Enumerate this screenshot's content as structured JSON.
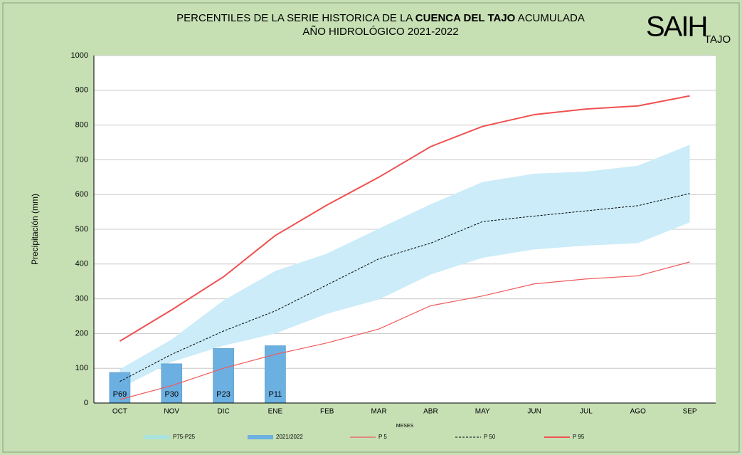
{
  "chart_data": {
    "type": "line",
    "title_parts": [
      "PERCENTILES DE LA SERIE HISTORICA DE LA ",
      "CUENCA DEL TAJO",
      " ACUMULADA"
    ],
    "subtitle": "AÑO HIDROLÓGICO 2021-2022",
    "logo": "SAIH",
    "logo_sub": "TAJO",
    "x_label": "MESES",
    "y_label": "Precipitación (mm)",
    "categories": [
      "OCT",
      "NOV",
      "DIC",
      "ENE",
      "FEB",
      "MAR",
      "ABR",
      "MAY",
      "JUN",
      "JUL",
      "AGO",
      "SEP"
    ],
    "ylim": [
      0,
      1000
    ],
    "yticks": [
      0,
      100,
      200,
      300,
      400,
      500,
      600,
      700,
      800,
      900,
      1000
    ],
    "grid": true,
    "legend": "bottom",
    "series": [
      {
        "name": "P75-P25",
        "type": "band",
        "color": "#cbecf8",
        "legend_color": "#a9e3dc",
        "upper": [
          97,
          183,
          295,
          380,
          430,
          502,
          572,
          636,
          660,
          666,
          683,
          743
        ],
        "lower": [
          42,
          118,
          165,
          200,
          257,
          298,
          370,
          418,
          442,
          453,
          460,
          520
        ]
      },
      {
        "name": "2021/2022",
        "type": "bar",
        "color": "#6cb0e2",
        "values": [
          88,
          113,
          157,
          165,
          null,
          null,
          null,
          null,
          null,
          null,
          null,
          null
        ],
        "labels": [
          "P69",
          "P30",
          "P23",
          "P11",
          null,
          null,
          null,
          null,
          null,
          null,
          null,
          null
        ]
      },
      {
        "name": "P 5",
        "type": "line",
        "color": "#f05a5a",
        "width": 1.2,
        "values": [
          10,
          50,
          100,
          140,
          173,
          213,
          280,
          308,
          343,
          357,
          366,
          406
        ]
      },
      {
        "name": "P 50",
        "type": "line",
        "color": "#000000",
        "width": 1,
        "dash": true,
        "values": [
          62,
          140,
          207,
          265,
          340,
          415,
          460,
          522,
          538,
          553,
          568,
          603
        ]
      },
      {
        "name": "P 95",
        "type": "line",
        "color": "#f05050",
        "width": 2,
        "values": [
          178,
          268,
          363,
          482,
          570,
          650,
          738,
          796,
          830,
          846,
          855,
          884
        ]
      }
    ]
  }
}
